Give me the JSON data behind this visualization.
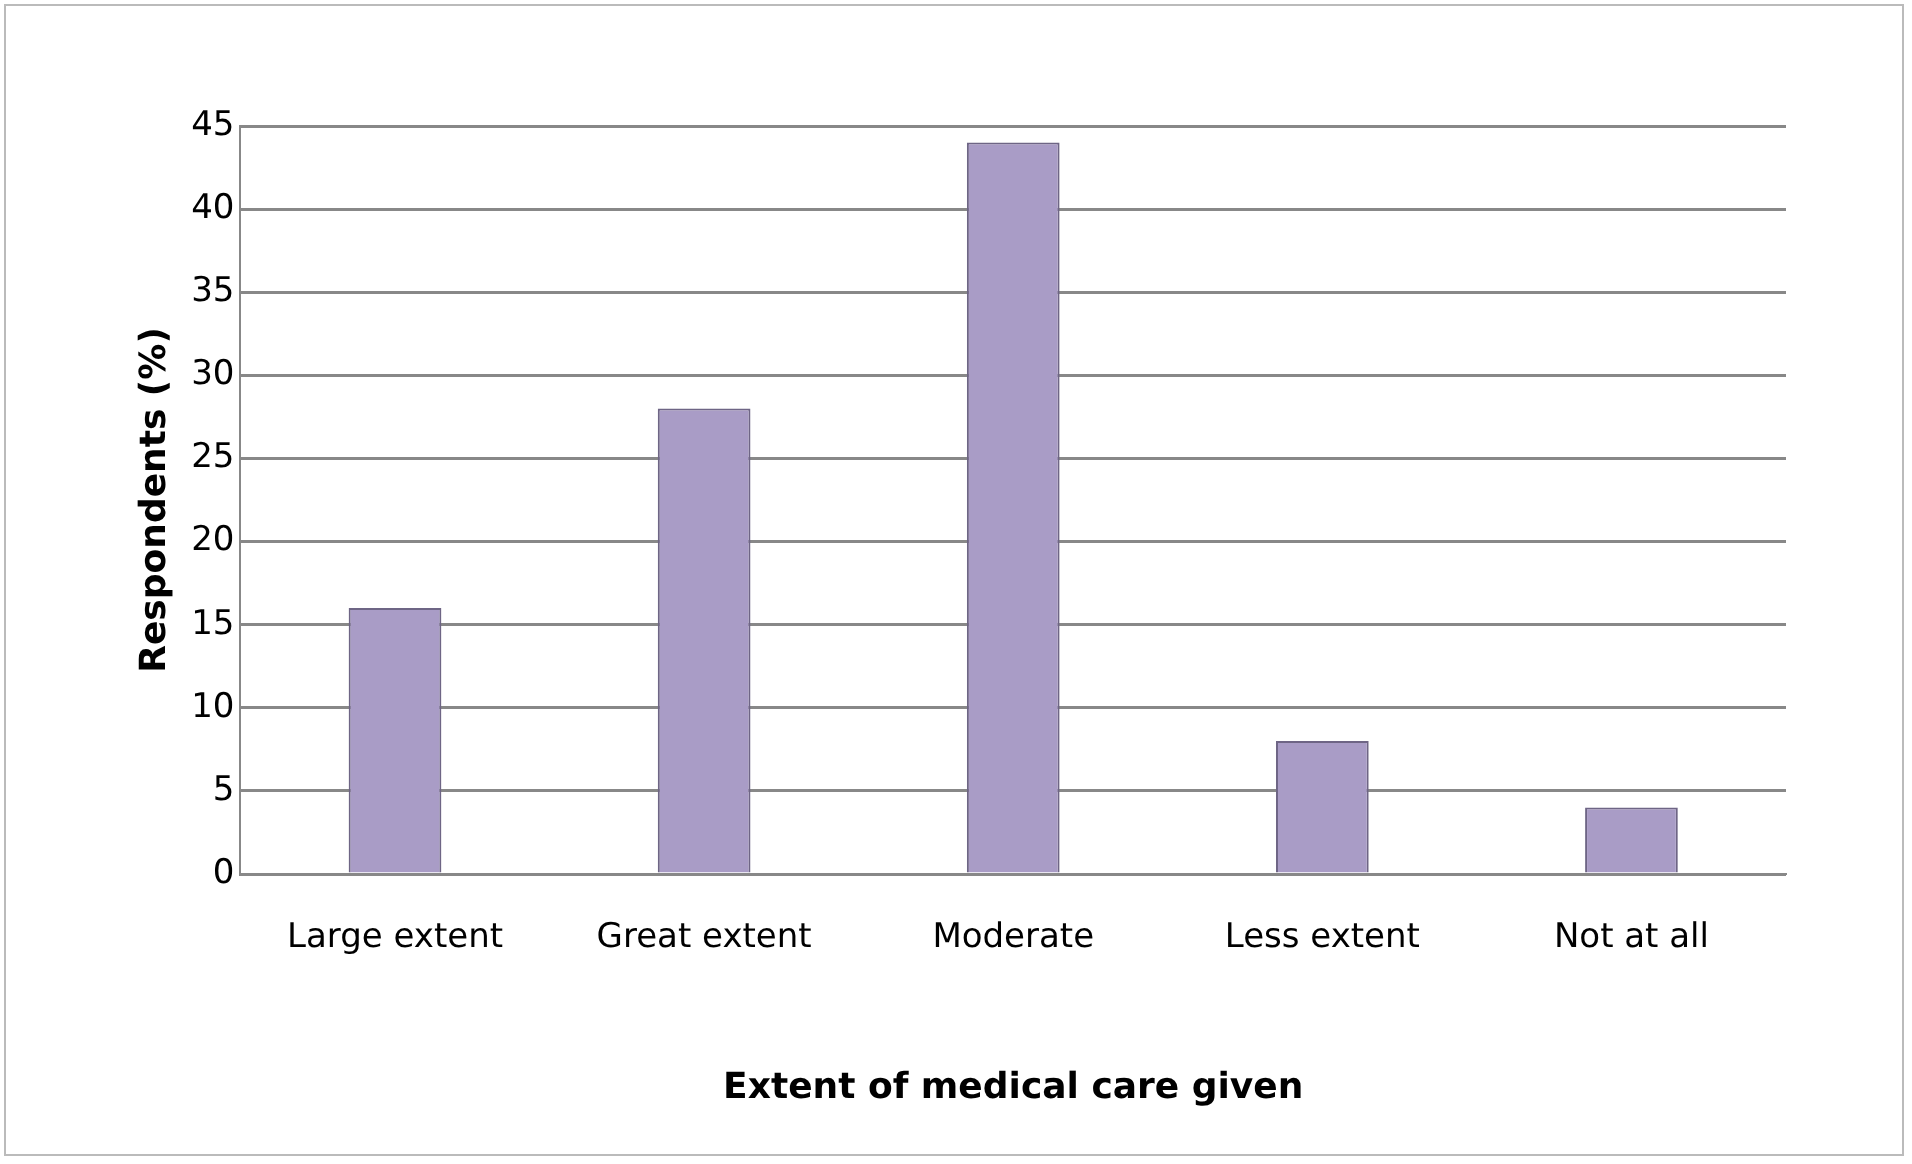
{
  "chart_data": {
    "type": "bar",
    "categories": [
      "Large extent",
      "Great extent",
      "Moderate",
      "Less extent",
      "Not at all"
    ],
    "values": [
      16,
      28,
      44,
      8,
      4
    ],
    "color": "#a99cc6",
    "xlabel": "Extent of medical care given",
    "ylabel": "Respondents (%)",
    "ylim": [
      0,
      45
    ],
    "yticks": [
      0,
      5,
      10,
      15,
      20,
      25,
      30,
      35,
      40,
      45
    ],
    "grid": "y",
    "legend": false
  }
}
